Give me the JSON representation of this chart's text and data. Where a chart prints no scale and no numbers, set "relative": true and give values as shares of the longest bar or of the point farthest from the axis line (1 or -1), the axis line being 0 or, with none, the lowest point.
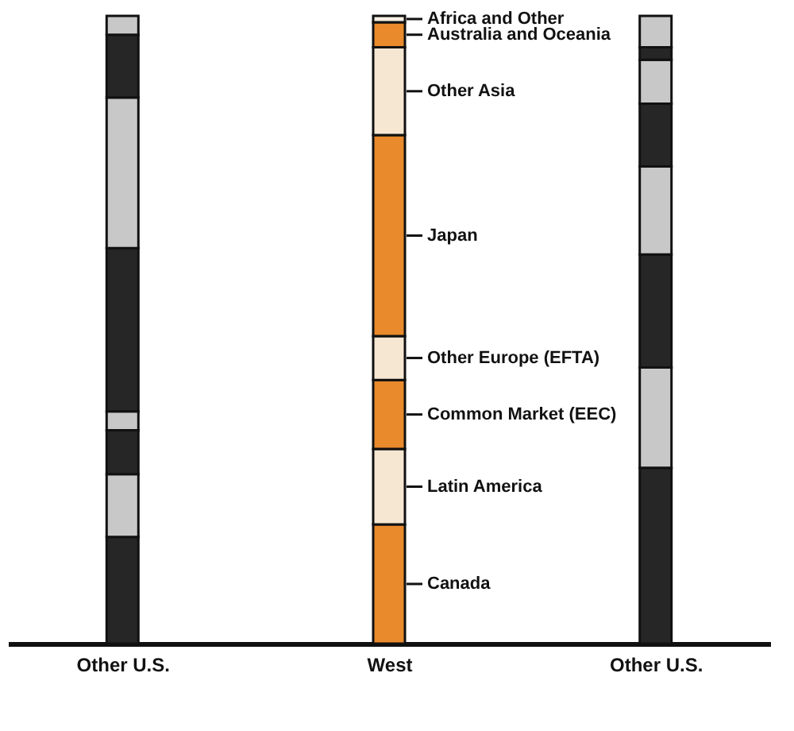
{
  "chart_data": {
    "type": "bar",
    "stacked": true,
    "legend": "right",
    "relative": true,
    "categories": [
      "Other U.S.",
      "West",
      "Other U.S."
    ],
    "series": [
      {
        "name": "Canada",
        "colors": [
          "#262626",
          "#e98a2c",
          "#262626"
        ],
        "values": [
          0.17,
          0.19,
          0.28
        ]
      },
      {
        "name": "Latin America",
        "colors": [
          "#c8c8c8",
          "#f6e7d3",
          "#c8c8c8"
        ],
        "values": [
          0.1,
          0.12,
          0.16
        ]
      },
      {
        "name": "Common Market (EEC)",
        "colors": [
          "#262626",
          "#e98a2c",
          "#262626"
        ],
        "values": [
          0.07,
          0.11,
          0.18
        ]
      },
      {
        "name": "Other Europe (EFTA)",
        "colors": [
          "#c8c8c8",
          "#f6e7d3",
          "#c8c8c8"
        ],
        "values": [
          0.03,
          0.07,
          0.14
        ]
      },
      {
        "name": "Japan",
        "colors": [
          "#262626",
          "#e98a2c",
          "#262626"
        ],
        "values": [
          0.26,
          0.32,
          0.1
        ]
      },
      {
        "name": "Other Asia",
        "colors": [
          "#c8c8c8",
          "#f6e7d3",
          "#c8c8c8"
        ],
        "values": [
          0.24,
          0.14,
          0.07
        ]
      },
      {
        "name": "Australia and Oceania",
        "colors": [
          "#262626",
          "#e98a2c",
          "#262626"
        ],
        "values": [
          0.1,
          0.04,
          0.02
        ]
      },
      {
        "name": "Africa and Other",
        "colors": [
          "#c8c8c8",
          "#f8f0e6",
          "#c8c8c8"
        ],
        "values": [
          0.03,
          0.01,
          0.05
        ]
      }
    ]
  }
}
